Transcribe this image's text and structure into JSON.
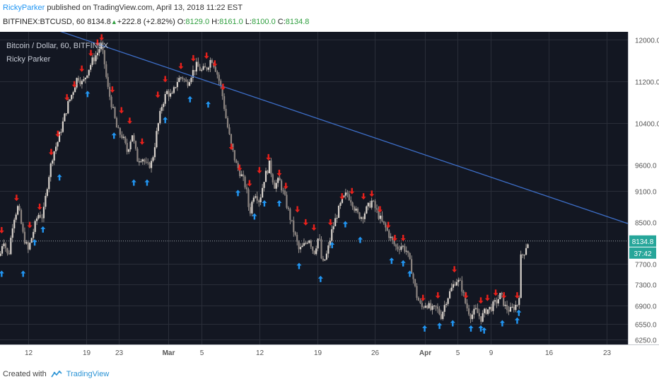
{
  "header": {
    "author": "RickyParker",
    "published_text": " published on TradingView.com, April 13, 2018 11:22 EST"
  },
  "ohlc": {
    "symbol_text": "BITFINEX:BTCUSD, 60",
    "last": "8134.8",
    "change": "+222.8 (+2.82%)",
    "o_label": "O:",
    "o_value": "8129.0",
    "h_label": "H:",
    "h_value": "8161.0",
    "l_label": "L:",
    "l_value": "8100.0",
    "c_label": "C:",
    "c_value": "8134.8"
  },
  "legend": {
    "title": "Bitcoin / Dollar, 60, BITFINEX",
    "indicator": "Ricky Parker"
  },
  "footer": {
    "created_with": "Created with",
    "brand": "TradingView"
  },
  "colors": {
    "background": "#131722",
    "grid": "#2a2e39",
    "axis_text": "#b2b5be",
    "trendline": "#3d6ec7",
    "up_arrow": "#2196f3",
    "down_arrow": "#e8201b",
    "candle": "#b8b0a8",
    "price_tag": "#26a69a"
  },
  "chart_data": {
    "type": "candlestick",
    "title": "Bitcoin / Dollar, 60, BITFINEX",
    "y_ticks": [
      12000,
      11200,
      10400,
      9600,
      9100,
      8500,
      7700,
      7300,
      6900,
      6550,
      6250
    ],
    "ylim": [
      6150,
      12150
    ],
    "x_ticks": [
      {
        "label": "12",
        "day": 12
      },
      {
        "label": "19",
        "day": 19
      },
      {
        "label": "23",
        "day": 23
      },
      {
        "label": "Mar",
        "day": 29
      },
      {
        "label": "5",
        "day": 33
      },
      {
        "label": "12",
        "day": 40
      },
      {
        "label": "19",
        "day": 47
      },
      {
        "label": "26",
        "day": 54
      },
      {
        "label": "Apr",
        "day": 60
      },
      {
        "label": "5",
        "day": 64
      },
      {
        "label": "9",
        "day": 68
      },
      {
        "label": "16",
        "day": 75
      },
      {
        "label": "23",
        "day": 82
      }
    ],
    "x_unit": "day (Feb 1 = 1)",
    "xlim": [
      8.6,
      84.6
    ],
    "data_end_day": 72.6,
    "path": [
      [
        8.6,
        7850
      ],
      [
        9.0,
        8200
      ],
      [
        9.6,
        7800
      ],
      [
        10.2,
        8550
      ],
      [
        10.8,
        8800
      ],
      [
        11.4,
        8250
      ],
      [
        12.0,
        7950
      ],
      [
        12.6,
        8300
      ],
      [
        13.2,
        8650
      ],
      [
        13.8,
        8600
      ],
      [
        14.4,
        9300
      ],
      [
        15.0,
        9800
      ],
      [
        15.6,
        10050
      ],
      [
        16.2,
        10400
      ],
      [
        16.8,
        10750
      ],
      [
        17.4,
        11000
      ],
      [
        18.0,
        11300
      ],
      [
        18.6,
        11150
      ],
      [
        19.2,
        11400
      ],
      [
        19.8,
        11600
      ],
      [
        20.4,
        11750
      ],
      [
        20.8,
        11900
      ],
      [
        21.2,
        11600
      ],
      [
        21.6,
        11100
      ],
      [
        22.2,
        10700
      ],
      [
        22.8,
        10250
      ],
      [
        23.4,
        10150
      ],
      [
        24.0,
        9850
      ],
      [
        24.6,
        10200
      ],
      [
        25.2,
        9700
      ],
      [
        25.8,
        9750
      ],
      [
        26.4,
        9550
      ],
      [
        27.0,
        9650
      ],
      [
        27.6,
        10250
      ],
      [
        28.2,
        10750
      ],
      [
        28.8,
        11000
      ],
      [
        29.4,
        10900
      ],
      [
        30.0,
        11200
      ],
      [
        30.6,
        11300
      ],
      [
        31.2,
        11150
      ],
      [
        31.8,
        11350
      ],
      [
        32.4,
        11500
      ],
      [
        33.0,
        11400
      ],
      [
        33.6,
        11450
      ],
      [
        34.2,
        11650
      ],
      [
        34.8,
        11400
      ],
      [
        35.4,
        11050
      ],
      [
        36.0,
        10450
      ],
      [
        36.6,
        9950
      ],
      [
        37.2,
        9600
      ],
      [
        37.8,
        9400
      ],
      [
        38.4,
        9150
      ],
      [
        38.8,
        8650
      ],
      [
        39.4,
        9100
      ],
      [
        40.0,
        8900
      ],
      [
        40.6,
        9350
      ],
      [
        41.2,
        9600
      ],
      [
        41.8,
        9200
      ],
      [
        42.4,
        9300
      ],
      [
        43.0,
        9000
      ],
      [
        43.6,
        8650
      ],
      [
        44.2,
        8300
      ],
      [
        44.8,
        7950
      ],
      [
        45.4,
        8050
      ],
      [
        46.0,
        8200
      ],
      [
        46.6,
        7900
      ],
      [
        47.2,
        8250
      ],
      [
        47.6,
        7650
      ],
      [
        48.2,
        7900
      ],
      [
        48.8,
        8350
      ],
      [
        49.4,
        8650
      ],
      [
        50.0,
        8900
      ],
      [
        50.6,
        9050
      ],
      [
        51.2,
        8900
      ],
      [
        51.8,
        8650
      ],
      [
        52.4,
        8600
      ],
      [
        53.0,
        8750
      ],
      [
        53.6,
        8900
      ],
      [
        54.2,
        8700
      ],
      [
        54.8,
        8500
      ],
      [
        55.4,
        8350
      ],
      [
        56.0,
        8150
      ],
      [
        56.6,
        8000
      ],
      [
        57.2,
        8050
      ],
      [
        57.8,
        7950
      ],
      [
        58.4,
        7600
      ],
      [
        59.0,
        7100
      ],
      [
        59.6,
        6850
      ],
      [
        60.2,
        6950
      ],
      [
        60.8,
        6800
      ],
      [
        61.4,
        6850
      ],
      [
        62.0,
        6700
      ],
      [
        62.6,
        7000
      ],
      [
        63.2,
        7200
      ],
      [
        63.8,
        7400
      ],
      [
        64.4,
        7300
      ],
      [
        65.0,
        6900
      ],
      [
        65.6,
        6700
      ],
      [
        66.2,
        6800
      ],
      [
        66.8,
        6650
      ],
      [
        67.4,
        6800
      ],
      [
        68.0,
        6850
      ],
      [
        68.6,
        6950
      ],
      [
        69.2,
        7100
      ],
      [
        69.8,
        6850
      ],
      [
        70.4,
        6800
      ],
      [
        71.0,
        6900
      ],
      [
        71.4,
        6950
      ],
      [
        71.6,
        7800
      ],
      [
        72.0,
        7900
      ],
      [
        72.3,
        8050
      ],
      [
        72.6,
        8135
      ]
    ],
    "trendline": [
      [
        8.6,
        12550
      ],
      [
        84.6,
        8470
      ]
    ],
    "last_price_line": 8134.8,
    "last_price_label": "8134.8",
    "countdown_label": "37:42",
    "markers_down": [
      [
        8.8,
        8200
      ],
      [
        10.6,
        8820
      ],
      [
        12.2,
        8300
      ],
      [
        13.4,
        8650
      ],
      [
        14.8,
        9700
      ],
      [
        15.6,
        10050
      ],
      [
        16.7,
        10750
      ],
      [
        17.6,
        11000
      ],
      [
        18.5,
        11300
      ],
      [
        19.6,
        11600
      ],
      [
        20.4,
        11800
      ],
      [
        20.9,
        11900
      ],
      [
        22.2,
        10900
      ],
      [
        23.3,
        10500
      ],
      [
        24.3,
        10300
      ],
      [
        25.8,
        9900
      ],
      [
        27.7,
        10800
      ],
      [
        28.6,
        11100
      ],
      [
        30.5,
        11350
      ],
      [
        32.0,
        11500
      ],
      [
        33.6,
        11550
      ],
      [
        34.6,
        11400
      ],
      [
        35.6,
        10950
      ],
      [
        36.6,
        9800
      ],
      [
        37.6,
        9400
      ],
      [
        38.8,
        9100
      ],
      [
        40.0,
        9350
      ],
      [
        41.1,
        9600
      ],
      [
        42.4,
        9300
      ],
      [
        43.2,
        9050
      ],
      [
        44.6,
        8600
      ],
      [
        45.6,
        8350
      ],
      [
        46.6,
        8250
      ],
      [
        48.6,
        8350
      ],
      [
        50.0,
        8850
      ],
      [
        51.2,
        8950
      ],
      [
        52.6,
        8850
      ],
      [
        53.6,
        8900
      ],
      [
        54.6,
        8600
      ],
      [
        55.6,
        8300
      ],
      [
        56.4,
        8050
      ],
      [
        57.4,
        8050
      ],
      [
        59.8,
        6900
      ],
      [
        61.6,
        6950
      ],
      [
        63.6,
        7450
      ],
      [
        65.0,
        6950
      ],
      [
        66.8,
        6850
      ],
      [
        67.6,
        6900
      ],
      [
        68.6,
        7000
      ],
      [
        69.6,
        6950
      ],
      [
        71.2,
        6950
      ]
    ],
    "markers_up": [
      [
        8.8,
        7650
      ],
      [
        11.4,
        7650
      ],
      [
        12.8,
        8250
      ],
      [
        13.8,
        8500
      ],
      [
        15.8,
        9500
      ],
      [
        19.2,
        11100
      ],
      [
        22.4,
        10300
      ],
      [
        24.8,
        9400
      ],
      [
        26.4,
        9400
      ],
      [
        28.6,
        10600
      ],
      [
        31.6,
        11000
      ],
      [
        33.8,
        10900
      ],
      [
        37.4,
        9200
      ],
      [
        39.4,
        8750
      ],
      [
        40.6,
        9000
      ],
      [
        42.4,
        9000
      ],
      [
        44.8,
        7800
      ],
      [
        47.4,
        7550
      ],
      [
        48.8,
        8200
      ],
      [
        50.4,
        8600
      ],
      [
        52.2,
        8300
      ],
      [
        56.0,
        7900
      ],
      [
        57.4,
        7850
      ],
      [
        58.2,
        7650
      ],
      [
        60.0,
        6600
      ],
      [
        61.8,
        6650
      ],
      [
        63.4,
        6700
      ],
      [
        65.6,
        6600
      ],
      [
        66.8,
        6600
      ],
      [
        67.2,
        6560
      ],
      [
        69.4,
        6700
      ],
      [
        71.2,
        6750
      ],
      [
        71.4,
        6900
      ]
    ]
  }
}
